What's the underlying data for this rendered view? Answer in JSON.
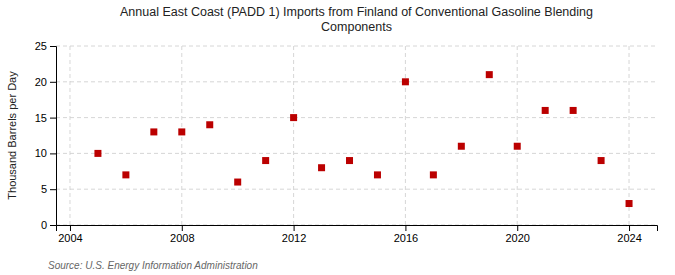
{
  "chart_data": {
    "type": "scatter",
    "title": "Annual East Coast (PADD 1) Imports from Finland of Conventional Gasoline Blending\nComponents",
    "y_label": "Thousand Barrels per Day",
    "source": "Source: U.S. Energy Information Administration",
    "x": [
      2005,
      2006,
      2007,
      2008,
      2009,
      2010,
      2011,
      2012,
      2013,
      2014,
      2015,
      2016,
      2017,
      2018,
      2019,
      2020,
      2021,
      2022,
      2023,
      2024
    ],
    "values": [
      10,
      7,
      13,
      13,
      14,
      6,
      9,
      15,
      8,
      9,
      7,
      20,
      7,
      11,
      21,
      11,
      16,
      16,
      9,
      3
    ],
    "color": "#bb0000",
    "marker": "square",
    "xlim": [
      2003.5,
      2025
    ],
    "ylim": [
      0,
      25
    ],
    "xticks": [
      2004,
      2008,
      2012,
      2016,
      2020,
      2024
    ],
    "yticks": [
      0,
      5,
      10,
      15,
      20,
      25
    ],
    "grid": true
  }
}
